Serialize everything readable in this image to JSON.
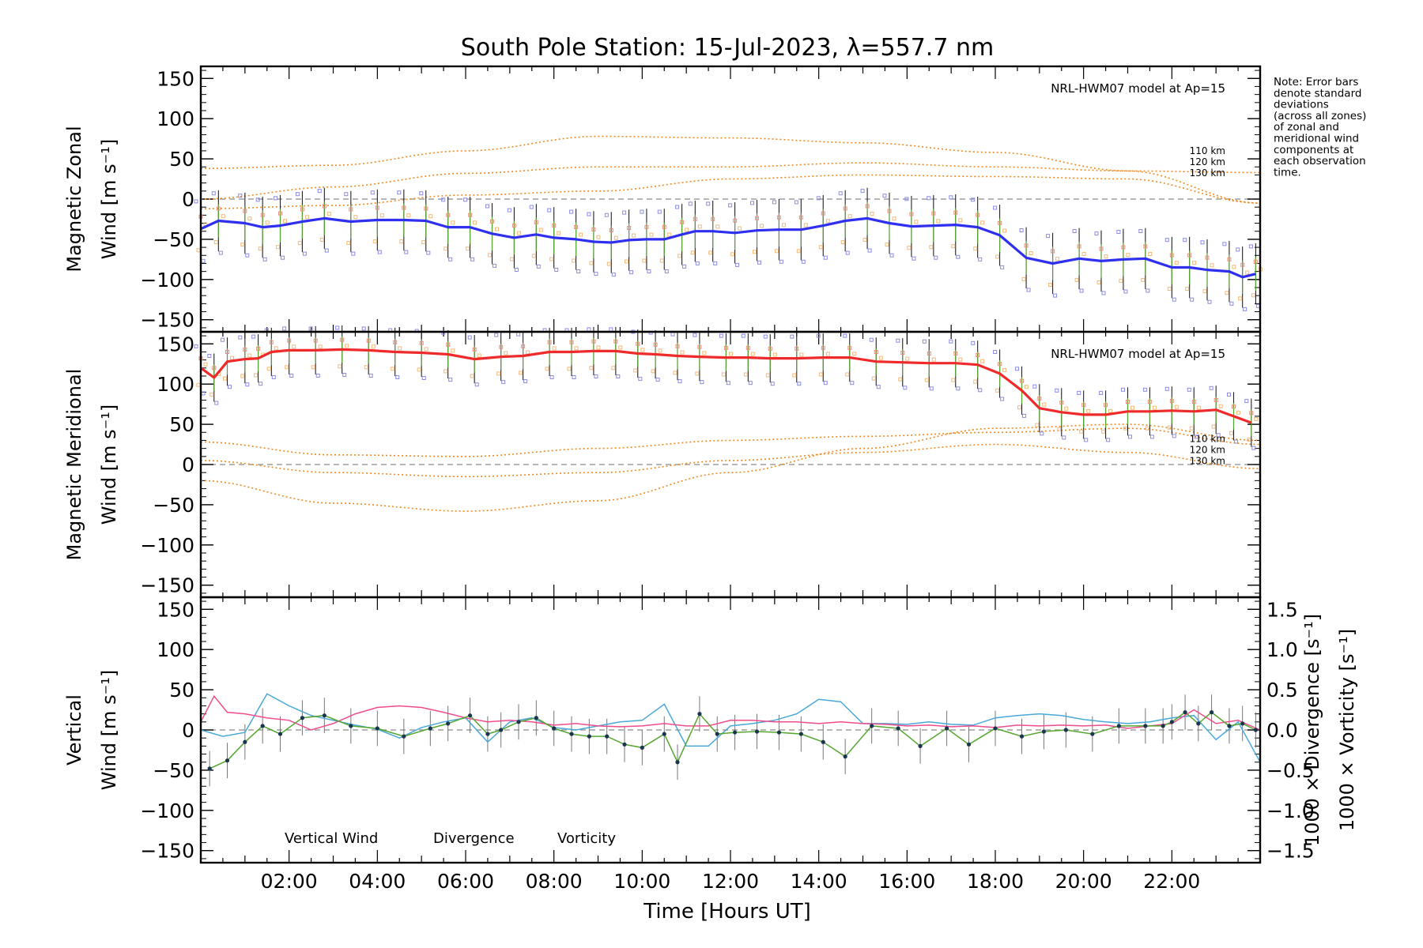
{
  "chart_data": {
    "type": "line",
    "title": "South Pole Station: 15-Jul-2023, λ=557.7 nm",
    "xlabel": "Time [Hours UT]",
    "xlim": [
      0.0,
      24.0
    ],
    "x_ticks": [
      "02:00",
      "04:00",
      "06:00",
      "08:00",
      "10:00",
      "12:00",
      "14:00",
      "16:00",
      "18:00",
      "20:00",
      "22:00"
    ],
    "y_ticks": [
      "150",
      "100",
      "50",
      "0",
      "−50",
      "−100",
      "−150"
    ],
    "note": [
      "Note: Error bars",
      "denote standard",
      "deviations",
      "(across all zones)",
      "of zonal and",
      "meridional wind",
      "components at",
      "each observation",
      "time."
    ],
    "colors": {
      "zonal": "#2f2ff0",
      "meridional": "#ef2a2a",
      "vertical": "#55a630",
      "divergence": "#4aa8d8",
      "vorticity": "#ef4c8c",
      "model": "#ef8a1f",
      "zero": "#8a8a8a",
      "errbar": "#222222",
      "scatter_blue": "#8c8ce6",
      "scatter_orange": "#f2b979",
      "scatter_red": "#f08a80",
      "scatter_green": "#7fcf7f"
    },
    "panels": [
      {
        "id": "zonal",
        "ylabel_line1": "Magnetic Zonal",
        "ylabel_line2": "Wind [m s⁻¹]",
        "ylim": [
          -165,
          165
        ],
        "model_label": "NRL-HWM07 model at Ap=15",
        "model_alt_labels": [
          "110 km",
          "120 km",
          "130 km"
        ],
        "series": [
          {
            "name": "Zonal wind",
            "x": [
              0.0,
              0.4,
              1.0,
              1.4,
              1.8,
              2.3,
              2.8,
              3.4,
              4.0,
              4.6,
              5.1,
              5.6,
              6.1,
              6.6,
              7.1,
              7.6,
              8.0,
              8.5,
              8.9,
              9.3,
              9.7,
              10.1,
              10.5,
              10.9,
              11.2,
              11.6,
              12.1,
              12.6,
              13.1,
              13.6,
              14.1,
              14.6,
              15.1,
              15.6,
              16.1,
              16.6,
              17.1,
              17.6,
              18.1,
              18.7,
              19.3,
              19.9,
              20.4,
              20.9,
              21.4,
              22.0,
              22.4,
              22.8,
              23.3,
              23.6,
              23.9
            ],
            "y": [
              -37,
              -27,
              -30,
              -35,
              -33,
              -28,
              -24,
              -28,
              -26,
              -26,
              -27,
              -35,
              -35,
              -43,
              -48,
              -44,
              -48,
              -50,
              -53,
              -54,
              -51,
              -50,
              -50,
              -44,
              -40,
              -40,
              -42,
              -39,
              -38,
              -38,
              -33,
              -27,
              -24,
              -30,
              -34,
              -33,
              -32,
              -35,
              -45,
              -73,
              -80,
              -74,
              -77,
              -75,
              -74,
              -85,
              -85,
              -88,
              -90,
              -97,
              -93
            ]
          },
          {
            "name": "HWM07 110 km",
            "x": [
              0,
              3,
              6,
              9,
              12,
              15,
              18,
              21,
              24
            ],
            "y": [
              38,
              42,
              60,
              78,
              76,
              70,
              58,
              35,
              -5
            ]
          },
          {
            "name": "HWM07 120 km",
            "x": [
              0,
              3,
              6,
              9,
              12,
              15,
              18,
              21,
              24
            ],
            "y": [
              0,
              15,
              32,
              40,
              40,
              45,
              40,
              35,
              33
            ]
          },
          {
            "name": "HWM07 130 km",
            "x": [
              0,
              3,
              6,
              9,
              12,
              15,
              18,
              21,
              24
            ],
            "y": [
              -12,
              -8,
              5,
              10,
              25,
              30,
              28,
              25,
              -5
            ]
          }
        ]
      },
      {
        "id": "meridional",
        "ylabel_line1": "Magnetic Meridional",
        "ylabel_line2": "Wind [m s⁻¹]",
        "ylim": [
          -165,
          165
        ],
        "model_label": "NRL-HWM07 model at Ap=15",
        "model_alt_labels": [
          "110 km",
          "120 km",
          "130 km"
        ],
        "series": [
          {
            "name": "Meridional wind",
            "x": [
              0.0,
              0.3,
              0.6,
              1.0,
              1.3,
              1.6,
              2.0,
              2.6,
              3.2,
              3.8,
              4.4,
              5.0,
              5.6,
              6.2,
              6.8,
              7.3,
              7.9,
              8.4,
              8.9,
              9.4,
              9.9,
              10.3,
              10.8,
              11.3,
              11.9,
              12.4,
              12.9,
              13.5,
              14.1,
              14.7,
              15.3,
              15.9,
              16.5,
              17.1,
              17.6,
              18.1,
              18.6,
              19.0,
              19.5,
              20.0,
              20.5,
              21.0,
              21.5,
              22.0,
              22.5,
              23.0,
              23.4,
              23.8
            ],
            "y": [
              120,
              108,
              128,
              131,
              132,
              140,
              142,
              142,
              143,
              142,
              140,
              139,
              137,
              131,
              134,
              135,
              140,
              140,
              141,
              141,
              138,
              137,
              135,
              134,
              133,
              133,
              132,
              132,
              133,
              133,
              128,
              127,
              126,
              126,
              124,
              113,
              92,
              70,
              65,
              62,
              62,
              66,
              66,
              67,
              66,
              68,
              60,
              52
            ]
          },
          {
            "name": "HWM07 110 km",
            "x": [
              0,
              3,
              6,
              9,
              12,
              15,
              18,
              21,
              24
            ],
            "y": [
              28,
              12,
              10,
              20,
              30,
              35,
              40,
              45,
              25
            ]
          },
          {
            "name": "HWM07 120 km",
            "x": [
              0,
              3,
              6,
              9,
              12,
              15,
              18,
              21,
              24
            ],
            "y": [
              -20,
              -48,
              -58,
              -45,
              -10,
              20,
              45,
              50,
              30
            ]
          },
          {
            "name": "HWM07 130 km",
            "x": [
              0,
              3,
              6,
              9,
              12,
              15,
              18,
              21,
              24
            ],
            "y": [
              5,
              -10,
              -15,
              -10,
              5,
              15,
              25,
              15,
              -5
            ]
          }
        ]
      },
      {
        "id": "vertical",
        "ylabel_line1": "Vertical",
        "ylabel_line2": "Wind [m s⁻¹]",
        "ylim": [
          -165,
          165
        ],
        "right_ylabel_divergence": "1000 × Divergence [s⁻¹]",
        "right_ylabel_vorticity": "1000 × Vorticity [s⁻¹]",
        "right_ylim": [
          -1.65,
          1.65
        ],
        "right_ticks": [
          "1.5",
          "1.0",
          "0.5",
          "0.0",
          "−0.5",
          "−1.0",
          "−1.5"
        ],
        "legend": [
          "Vertical Wind",
          "Divergence",
          "Vorticity"
        ],
        "series": [
          {
            "name": "Vertical Wind",
            "x": [
              0.2,
              0.6,
              1.0,
              1.4,
              1.8,
              2.3,
              2.8,
              3.4,
              4.0,
              4.6,
              5.2,
              5.6,
              6.1,
              6.5,
              6.8,
              7.2,
              7.6,
              8.0,
              8.4,
              8.8,
              9.2,
              9.6,
              10.0,
              10.5,
              10.8,
              11.3,
              11.7,
              12.1,
              12.6,
              13.1,
              13.6,
              14.1,
              14.6,
              15.2,
              15.8,
              16.3,
              16.9,
              17.4,
              18.0,
              18.6,
              19.1,
              19.6,
              20.2,
              20.8,
              21.4,
              21.8,
              22.0,
              22.3,
              22.6,
              22.9,
              23.3,
              23.6,
              23.9
            ],
            "y": [
              -48,
              -38,
              -15,
              5,
              -5,
              15,
              18,
              5,
              2,
              -8,
              2,
              8,
              18,
              -5,
              0,
              10,
              15,
              2,
              -5,
              -8,
              -8,
              -18,
              -22,
              -5,
              -40,
              20,
              -5,
              -3,
              -2,
              -3,
              -5,
              -15,
              -33,
              5,
              2,
              -20,
              2,
              -18,
              2,
              -8,
              -2,
              0,
              -5,
              5,
              5,
              5,
              10,
              22,
              8,
              22,
              5,
              8,
              0
            ]
          },
          {
            "name": "Divergence",
            "x": [
              0.0,
              0.5,
              1.0,
              1.5,
              2.0,
              2.5,
              3.0,
              3.5,
              4.0,
              4.5,
              5.0,
              5.5,
              6.0,
              6.5,
              7.0,
              7.5,
              8.0,
              8.5,
              9.0,
              9.5,
              10.0,
              10.5,
              11.0,
              11.5,
              12.0,
              12.5,
              13.0,
              13.5,
              14.0,
              14.5,
              15.0,
              15.5,
              16.0,
              16.5,
              17.0,
              17.5,
              18.0,
              18.5,
              19.0,
              19.5,
              20.0,
              20.5,
              21.0,
              21.5,
              22.0,
              22.5,
              23.0,
              23.5,
              24.0
            ],
            "y": [
              0.0,
              -0.08,
              -0.03,
              0.45,
              0.3,
              0.18,
              0.12,
              0.06,
              0.01,
              -0.1,
              0.03,
              0.1,
              0.15,
              -0.15,
              0.1,
              0.15,
              0.03,
              0.0,
              0.05,
              0.1,
              0.12,
              0.32,
              -0.2,
              -0.2,
              0.05,
              0.08,
              0.12,
              0.2,
              0.38,
              0.35,
              0.08,
              0.08,
              0.07,
              0.1,
              0.07,
              0.06,
              0.15,
              0.18,
              0.2,
              0.18,
              0.13,
              0.1,
              0.08,
              0.1,
              0.15,
              0.18,
              -0.12,
              0.1,
              -0.4
            ]
          },
          {
            "name": "Vorticity",
            "x": [
              0.0,
              0.3,
              0.6,
              1.0,
              1.5,
              2.0,
              2.5,
              3.0,
              3.5,
              4.0,
              4.5,
              5.0,
              5.5,
              6.0,
              6.5,
              7.0,
              7.5,
              8.0,
              8.5,
              9.0,
              9.5,
              10.0,
              10.5,
              11.0,
              11.5,
              12.0,
              12.5,
              13.0,
              13.5,
              14.0,
              14.5,
              15.0,
              15.5,
              16.0,
              16.5,
              17.0,
              17.5,
              18.0,
              18.5,
              19.0,
              19.5,
              20.0,
              20.5,
              21.0,
              21.5,
              22.0,
              22.5,
              23.0,
              23.5,
              24.0
            ],
            "y": [
              0.1,
              0.42,
              0.22,
              0.2,
              0.15,
              0.12,
              0.0,
              0.08,
              0.2,
              0.28,
              0.3,
              0.28,
              0.22,
              0.15,
              0.1,
              0.12,
              0.1,
              0.06,
              0.08,
              0.05,
              0.04,
              0.05,
              0.08,
              0.05,
              0.05,
              0.12,
              0.12,
              0.1,
              0.1,
              0.08,
              0.1,
              0.08,
              0.07,
              0.05,
              0.06,
              0.04,
              0.05,
              0.03,
              0.06,
              0.05,
              0.06,
              0.05,
              0.06,
              0.02,
              0.05,
              0.08,
              0.25,
              0.08,
              0.12,
              0.0
            ]
          }
        ]
      }
    ]
  }
}
